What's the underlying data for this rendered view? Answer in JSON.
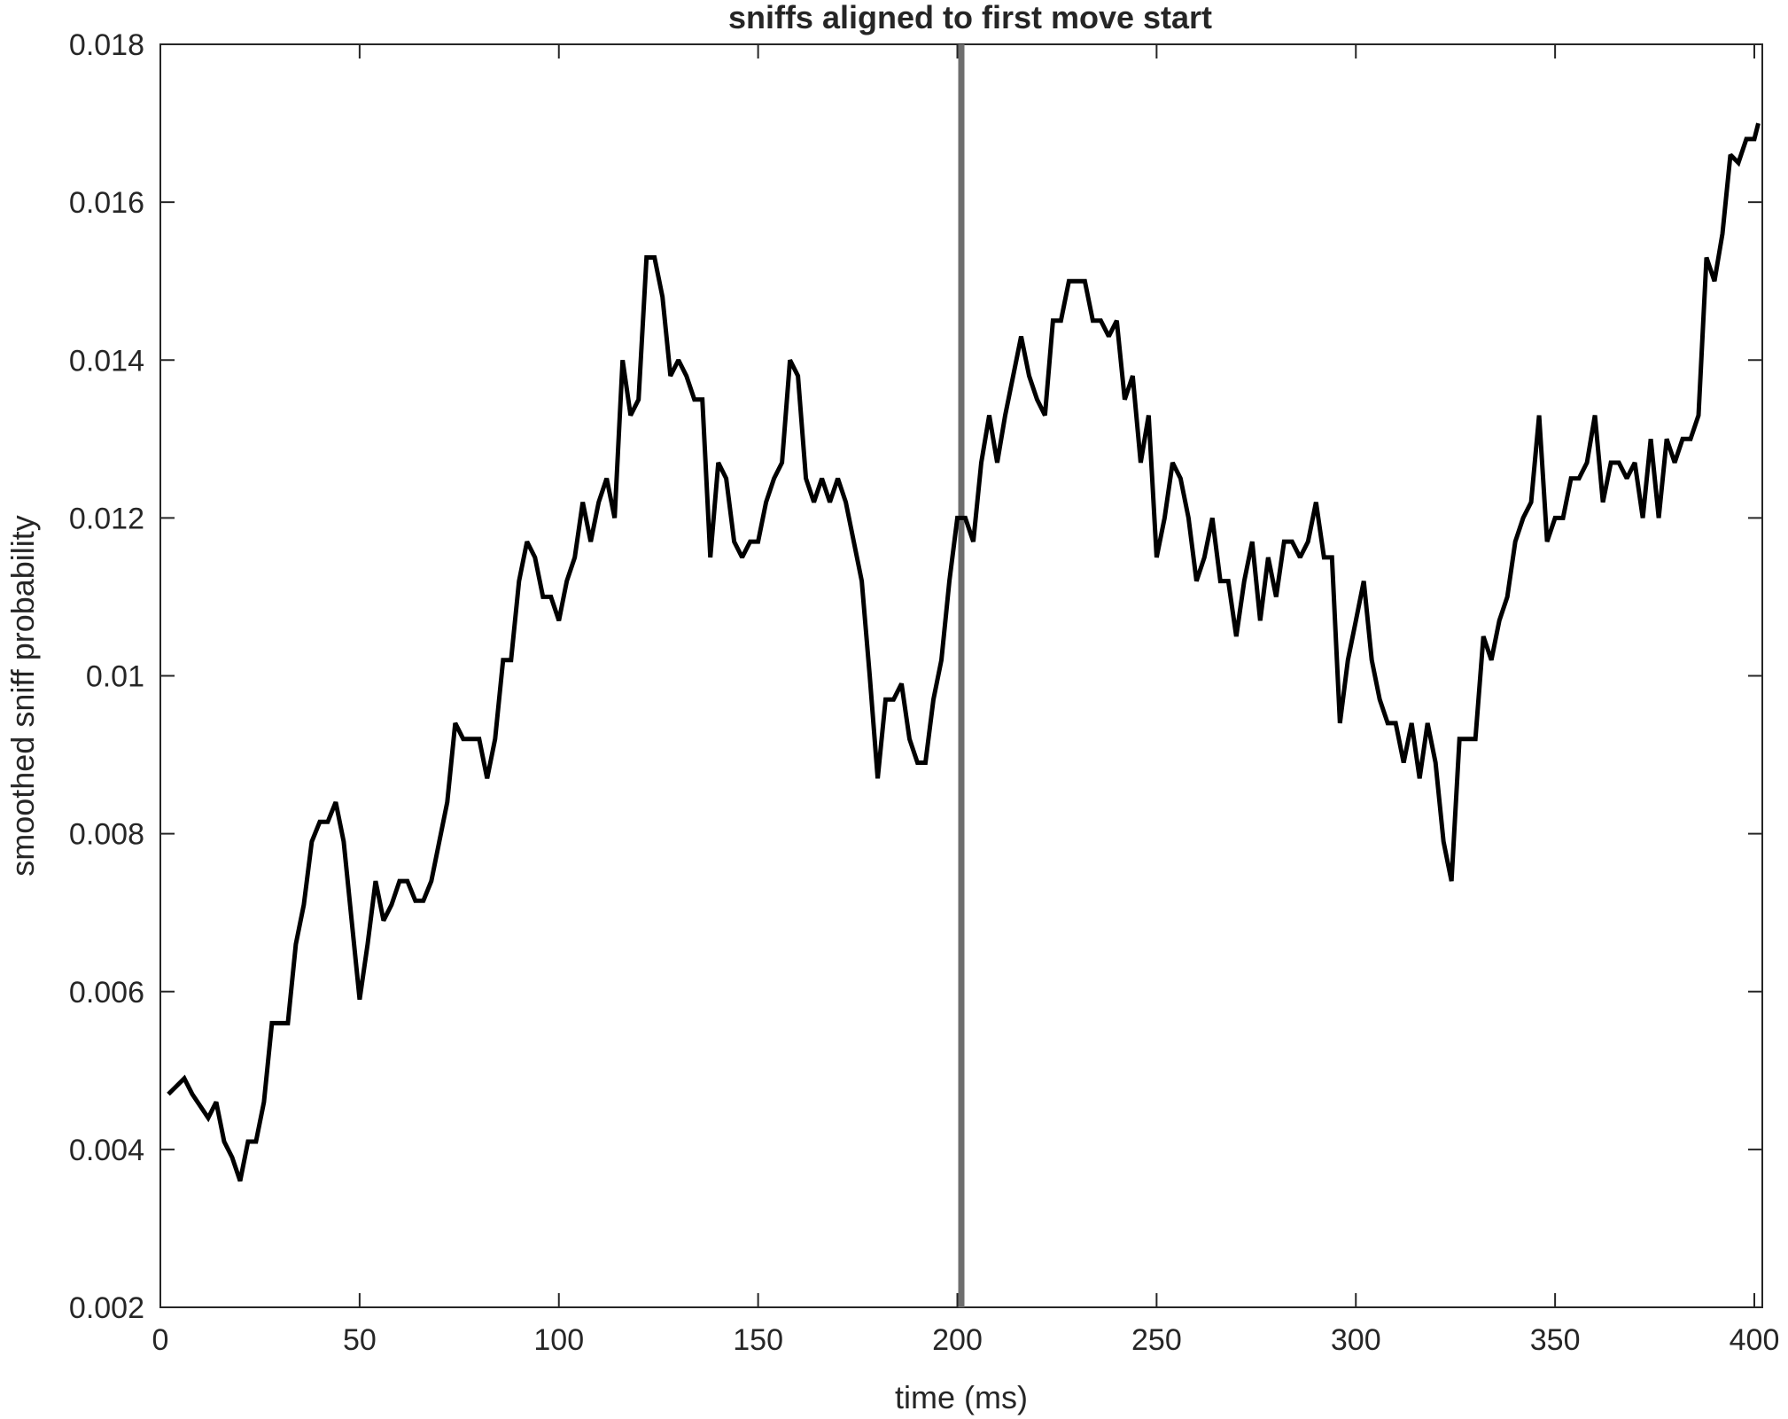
{
  "chart_data": {
    "type": "line",
    "title": "sniffs aligned to first move start",
    "xlabel": "time (ms)",
    "ylabel": "smoothed sniff probability",
    "xlim": [
      0,
      402
    ],
    "ylim": [
      0.002,
      0.018
    ],
    "xticks": [
      0,
      50,
      100,
      150,
      200,
      250,
      300,
      350,
      400
    ],
    "yticks": [
      0.002,
      0.004,
      0.006,
      0.008,
      0.01,
      0.012,
      0.014,
      0.016,
      0.018
    ],
    "xtick_labels": [
      "0",
      "50",
      "100",
      "150",
      "200",
      "250",
      "300",
      "350",
      "400"
    ],
    "ytick_labels": [
      "0.002",
      "0.004",
      "0.006",
      "0.008",
      "0.01",
      "0.012",
      "0.014",
      "0.016",
      "0.018"
    ],
    "grid": false,
    "line_color": "#000000",
    "reference_line": {
      "x": 201,
      "color": "#6e6e6e"
    },
    "series": [
      {
        "name": "smoothed sniff probability",
        "x": [
          2,
          4,
          6,
          8,
          10,
          12,
          14,
          16,
          18,
          20,
          22,
          24,
          26,
          28,
          30,
          32,
          34,
          36,
          38,
          40,
          42,
          44,
          46,
          48,
          50,
          52,
          54,
          56,
          58,
          60,
          62,
          64,
          66,
          68,
          70,
          72,
          74,
          76,
          78,
          80,
          82,
          84,
          86,
          88,
          90,
          92,
          94,
          96,
          98,
          100,
          102,
          104,
          106,
          108,
          110,
          112,
          114,
          116,
          118,
          120,
          122,
          124,
          126,
          128,
          130,
          132,
          134,
          136,
          138,
          140,
          142,
          144,
          146,
          148,
          150,
          152,
          154,
          156,
          158,
          160,
          162,
          164,
          166,
          168,
          170,
          172,
          174,
          176,
          178,
          180,
          182,
          184,
          186,
          188,
          190,
          192,
          194,
          196,
          198,
          200,
          202,
          204,
          206,
          208,
          210,
          212,
          214,
          216,
          218,
          220,
          222,
          224,
          226,
          228,
          230,
          232,
          234,
          236,
          238,
          240,
          242,
          244,
          246,
          248,
          250,
          252,
          254,
          256,
          258,
          260,
          262,
          264,
          266,
          268,
          270,
          272,
          274,
          276,
          278,
          280,
          282,
          284,
          286,
          288,
          290,
          292,
          294,
          296,
          298,
          300,
          302,
          304,
          306,
          308,
          310,
          312,
          314,
          316,
          318,
          320,
          322,
          324,
          326,
          328,
          330,
          332,
          334,
          336,
          338,
          340,
          342,
          344,
          346,
          348,
          350,
          352,
          354,
          356,
          358,
          360,
          362,
          364,
          366,
          368,
          370,
          372,
          374,
          376,
          378,
          380,
          382,
          384,
          386,
          388,
          390,
          392,
          394,
          396,
          398,
          400,
          401
        ],
        "y": [
          0.0047,
          0.0048,
          0.0049,
          0.0047,
          0.00455,
          0.0044,
          0.0046,
          0.0041,
          0.0039,
          0.0036,
          0.0041,
          0.0041,
          0.0046,
          0.0056,
          0.0056,
          0.0056,
          0.0066,
          0.0071,
          0.0079,
          0.00815,
          0.00815,
          0.0084,
          0.0079,
          0.0069,
          0.0059,
          0.0066,
          0.0074,
          0.0069,
          0.0071,
          0.0074,
          0.0074,
          0.00715,
          0.00715,
          0.0074,
          0.0079,
          0.0084,
          0.0094,
          0.0092,
          0.0092,
          0.0092,
          0.0087,
          0.0092,
          0.0102,
          0.0102,
          0.0112,
          0.0117,
          0.0115,
          0.011,
          0.011,
          0.0107,
          0.0112,
          0.0115,
          0.0122,
          0.0117,
          0.0122,
          0.0125,
          0.012,
          0.014,
          0.0133,
          0.0135,
          0.0153,
          0.0153,
          0.0148,
          0.0138,
          0.014,
          0.0138,
          0.0135,
          0.0135,
          0.0115,
          0.0127,
          0.0125,
          0.0117,
          0.0115,
          0.0117,
          0.0117,
          0.0122,
          0.0125,
          0.0127,
          0.014,
          0.0138,
          0.0125,
          0.0122,
          0.0125,
          0.0122,
          0.0125,
          0.0122,
          0.0117,
          0.0112,
          0.01,
          0.0087,
          0.0097,
          0.0097,
          0.0099,
          0.0092,
          0.0089,
          0.0089,
          0.0097,
          0.0102,
          0.0112,
          0.012,
          0.012,
          0.0117,
          0.0127,
          0.0133,
          0.0127,
          0.0133,
          0.0138,
          0.0143,
          0.0138,
          0.0135,
          0.0133,
          0.0145,
          0.0145,
          0.015,
          0.015,
          0.015,
          0.0145,
          0.0145,
          0.0143,
          0.0145,
          0.0135,
          0.0138,
          0.0127,
          0.0133,
          0.0115,
          0.012,
          0.0127,
          0.0125,
          0.012,
          0.0112,
          0.0115,
          0.012,
          0.0112,
          0.0112,
          0.0105,
          0.0112,
          0.0117,
          0.0107,
          0.0115,
          0.011,
          0.0117,
          0.0117,
          0.0115,
          0.0117,
          0.0122,
          0.0115,
          0.0115,
          0.0094,
          0.0102,
          0.0107,
          0.0112,
          0.0102,
          0.0097,
          0.0094,
          0.0094,
          0.0089,
          0.0094,
          0.0087,
          0.0094,
          0.0089,
          0.0079,
          0.0074,
          0.0092,
          0.0092,
          0.0092,
          0.0105,
          0.0102,
          0.0107,
          0.011,
          0.0117,
          0.012,
          0.0122,
          0.0133,
          0.0117,
          0.012,
          0.012,
          0.0125,
          0.0125,
          0.0127,
          0.0133,
          0.0122,
          0.0127,
          0.0127,
          0.0125,
          0.0127,
          0.012,
          0.013,
          0.012,
          0.013,
          0.0127,
          0.013,
          0.013,
          0.0133,
          0.0153,
          0.015,
          0.0156,
          0.0166,
          0.0165,
          0.0168,
          0.0168,
          0.017
        ]
      }
    ]
  }
}
